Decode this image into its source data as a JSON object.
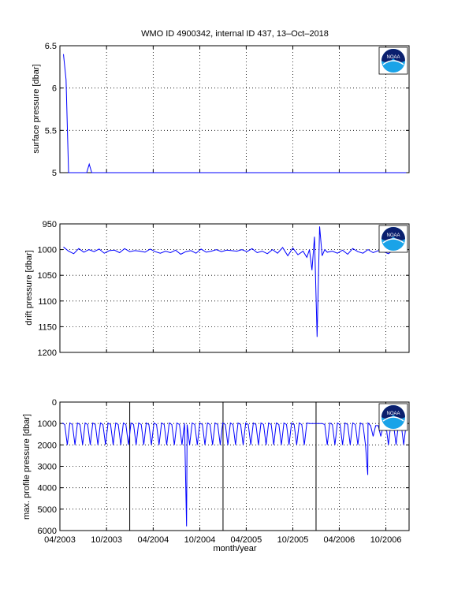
{
  "figure": {
    "title": "WMO ID 4900342, internal ID 437, 13–Oct–2018",
    "xlabel": "month/year",
    "logo_text": "NOAA",
    "colors": {
      "line": "#0000ff",
      "axes": "#000000",
      "grid": "#000000",
      "logo_dark": "#0a1f6e",
      "logo_light": "#1aa3e8"
    }
  },
  "chart_data": [
    {
      "type": "line",
      "name": "surface-pressure",
      "ylabel": "surface pressure [dbar]",
      "ylim": [
        5,
        6.5
      ],
      "y_reversed": false,
      "yticks": [
        5,
        5.5,
        6,
        6.5
      ],
      "ytick_labels": [
        "5",
        "5.5",
        "6",
        "6.5"
      ],
      "grid": true,
      "x": [
        "2003-04-15",
        "2003-04-25",
        "2003-05-05",
        "2003-07-15",
        "2003-07-25",
        "2003-08-04",
        "2006-12-20"
      ],
      "values": [
        6.4,
        6.1,
        5.0,
        5.0,
        5.1,
        5.0,
        5.0
      ]
    },
    {
      "type": "line",
      "name": "drift-pressure",
      "ylabel": "drift pressure [dbar]",
      "ylim": [
        950,
        1200
      ],
      "y_reversed": true,
      "yticks": [
        950,
        1000,
        1050,
        1100,
        1150,
        1200
      ],
      "ytick_labels": [
        "950",
        "1000",
        "1050",
        "1100",
        "1150",
        "1200"
      ],
      "grid": true,
      "x": [
        "2003-04-15",
        "2003-05-05",
        "2003-05-25",
        "2003-06-14",
        "2003-07-04",
        "2003-07-24",
        "2003-08-13",
        "2003-09-02",
        "2003-09-22",
        "2003-10-12",
        "2003-11-01",
        "2003-11-21",
        "2003-12-11",
        "2003-12-31",
        "2004-01-20",
        "2004-02-09",
        "2004-02-29",
        "2004-03-20",
        "2004-04-09",
        "2004-04-29",
        "2004-05-19",
        "2004-06-08",
        "2004-06-28",
        "2004-07-18",
        "2004-08-07",
        "2004-08-27",
        "2004-09-16",
        "2004-10-06",
        "2004-10-26",
        "2004-11-15",
        "2004-12-05",
        "2004-12-25",
        "2005-01-14",
        "2005-02-03",
        "2005-02-23",
        "2005-03-15",
        "2005-04-04",
        "2005-04-24",
        "2005-05-14",
        "2005-06-03",
        "2005-06-23",
        "2005-07-13",
        "2005-08-02",
        "2005-08-22",
        "2005-09-11",
        "2005-10-01",
        "2005-10-21",
        "2005-11-10",
        "2005-11-25",
        "2005-12-05",
        "2005-12-15",
        "2005-12-25",
        "2006-01-04",
        "2006-01-14",
        "2006-01-24",
        "2006-02-03",
        "2006-02-13",
        "2006-03-05",
        "2006-03-25",
        "2006-04-14",
        "2006-05-04",
        "2006-05-24",
        "2006-06-13",
        "2006-07-03",
        "2006-07-23",
        "2006-08-12",
        "2006-09-01",
        "2006-09-21",
        "2006-10-11",
        "2006-10-31",
        "2006-11-20",
        "2006-12-10"
      ],
      "values": [
        995,
        1003,
        1008,
        998,
        1005,
        1000,
        1004,
        999,
        1007,
        1002,
        1001,
        1006,
        998,
        1004,
        1002,
        1003,
        1005,
        999,
        1004,
        1007,
        1003,
        1006,
        1001,
        1009,
        1004,
        1002,
        1007,
        999,
        1005,
        1003,
        1000,
        1004,
        1001,
        1002,
        1003,
        1000,
        1004,
        998,
        1006,
        1003,
        1008,
        1000,
        1007,
        996,
        1012,
        997,
        1010,
        1003,
        1015,
        1000,
        1040,
        975,
        1170,
        955,
        1012,
        1000,
        1005,
        1003,
        1007,
        1001,
        1009,
        998,
        1004,
        1007,
        1000,
        1006,
        1002,
        1004,
        1008,
        1001,
        1004,
        1002
      ]
    },
    {
      "type": "line",
      "name": "max-profile-pressure",
      "ylabel": "max. profile pressure [dbar]",
      "ylim": [
        0,
        6000
      ],
      "y_reversed": true,
      "yticks": [
        0,
        1000,
        2000,
        3000,
        4000,
        5000,
        6000
      ],
      "ytick_labels": [
        "0",
        "1000",
        "2000",
        "3000",
        "4000",
        "5000",
        "6000"
      ],
      "grid": true,
      "x_dividers": [
        "2003-12-31",
        "2004-12-31",
        "2005-12-31"
      ],
      "x": [],
      "values": []
    }
  ],
  "x_axis": {
    "xlim": [
      "2003-04-01",
      "2006-12-31"
    ],
    "ticks": [
      "2003-04-01",
      "2003-10-01",
      "2004-04-01",
      "2004-10-01",
      "2005-04-01",
      "2005-10-01",
      "2006-04-01",
      "2006-10-01"
    ],
    "tick_labels": [
      "04/2003",
      "10/2003",
      "04/2004",
      "10/2004",
      "04/2005",
      "10/2005",
      "04/2006",
      "10/2006"
    ]
  }
}
